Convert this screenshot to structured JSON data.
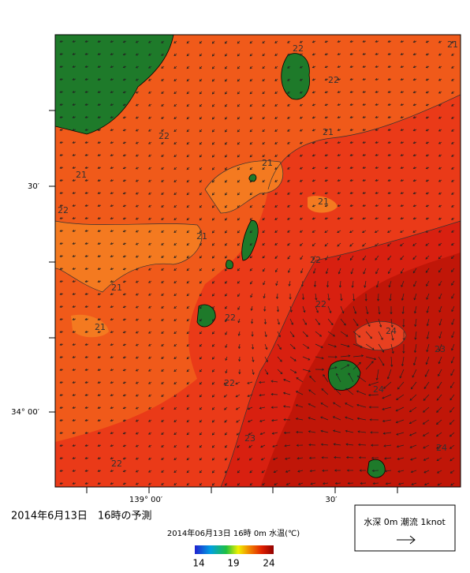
{
  "map": {
    "title": "2014年6月13日　16時の予測",
    "subtitle": "2014年06月13日 16時 0m 水温(℃)",
    "x_labels": [
      "139° 00′",
      "30′"
    ],
    "y_labels": [
      "30′",
      "34° 00′"
    ],
    "contour_labels": [
      "22",
      "22",
      "22",
      "21",
      "21",
      "21",
      "22",
      "21",
      "21",
      "22",
      "21",
      "22",
      "21",
      "22",
      "24",
      "23",
      "22",
      "24",
      "23",
      "22",
      "24",
      "21"
    ],
    "colorbar_ticks": [
      "14",
      "19",
      "24"
    ],
    "legend": "水深 0m 潮流 1knot"
  }
}
